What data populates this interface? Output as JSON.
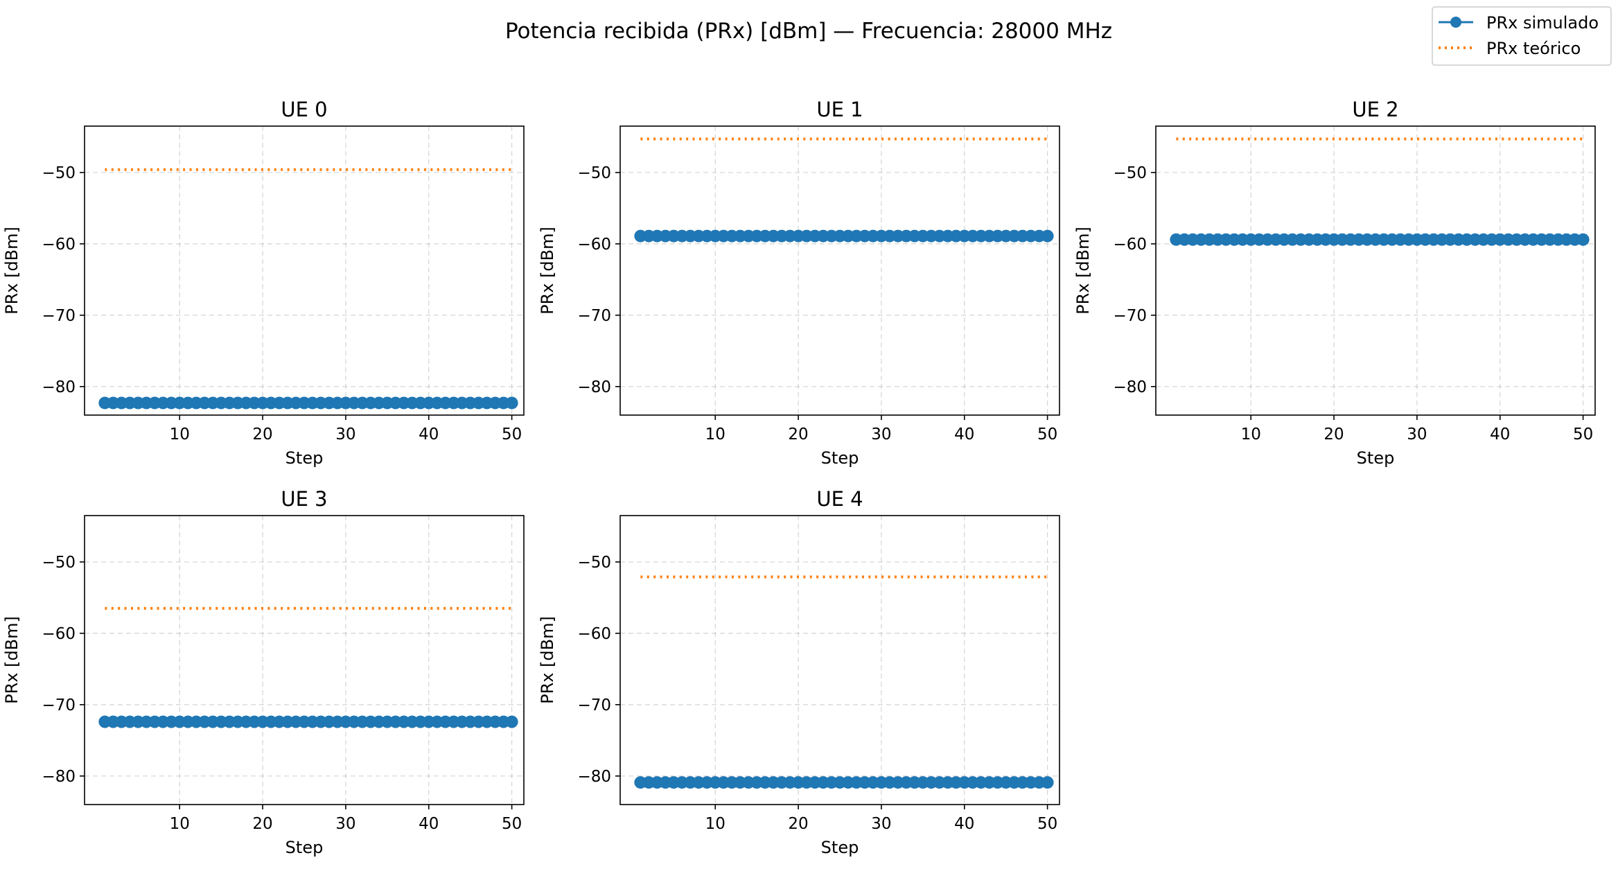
{
  "figure": {
    "title": "Potencia recibida (PRx) [dBm] — Frecuencia: 28000 MHz",
    "legend": {
      "placement": "top-right",
      "items": [
        {
          "label": "PRx simulado",
          "style": "line-marker",
          "color": "#1f77b4"
        },
        {
          "label": "PRx teórico",
          "style": "dotted",
          "color": "#ff7f0e"
        }
      ]
    }
  },
  "chart_data": [
    {
      "type": "line",
      "title": "UE 0",
      "xlabel": "Step",
      "ylabel": "PRx [dBm]",
      "xlim": [
        -1.45,
        51.45
      ],
      "ylim": [
        -84,
        -43.5
      ],
      "xticks": [
        10,
        20,
        30,
        40,
        50
      ],
      "yticks": [
        -80,
        -70,
        -60,
        -50
      ],
      "grid": true,
      "x_range": [
        1,
        50
      ],
      "series": [
        {
          "name": "PRx simulado",
          "color": "#1f77b4",
          "style": "line-marker",
          "value": -82.3
        },
        {
          "name": "PRx teórico",
          "color": "#ff7f0e",
          "style": "dotted",
          "value": -49.6
        }
      ]
    },
    {
      "type": "line",
      "title": "UE 1",
      "xlabel": "Step",
      "ylabel": "PRx [dBm]",
      "xlim": [
        -1.45,
        51.45
      ],
      "ylim": [
        -84,
        -43.5
      ],
      "xticks": [
        10,
        20,
        30,
        40,
        50
      ],
      "yticks": [
        -80,
        -70,
        -60,
        -50
      ],
      "grid": true,
      "x_range": [
        1,
        50
      ],
      "series": [
        {
          "name": "PRx simulado",
          "color": "#1f77b4",
          "style": "line-marker",
          "value": -58.9
        },
        {
          "name": "PRx teórico",
          "color": "#ff7f0e",
          "style": "dotted",
          "value": -45.3
        }
      ]
    },
    {
      "type": "line",
      "title": "UE 2",
      "xlabel": "Step",
      "ylabel": "PRx [dBm]",
      "xlim": [
        -1.45,
        51.45
      ],
      "ylim": [
        -84,
        -43.5
      ],
      "xticks": [
        10,
        20,
        30,
        40,
        50
      ],
      "yticks": [
        -80,
        -70,
        -60,
        -50
      ],
      "grid": true,
      "x_range": [
        1,
        50
      ],
      "series": [
        {
          "name": "PRx simulado",
          "color": "#1f77b4",
          "style": "line-marker",
          "value": -59.4
        },
        {
          "name": "PRx teórico",
          "color": "#ff7f0e",
          "style": "dotted",
          "value": -45.3
        }
      ]
    },
    {
      "type": "line",
      "title": "UE 3",
      "xlabel": "Step",
      "ylabel": "PRx [dBm]",
      "xlim": [
        -1.45,
        51.45
      ],
      "ylim": [
        -84,
        -43.5
      ],
      "xticks": [
        10,
        20,
        30,
        40,
        50
      ],
      "yticks": [
        -80,
        -70,
        -60,
        -50
      ],
      "grid": true,
      "x_range": [
        1,
        50
      ],
      "series": [
        {
          "name": "PRx simulado",
          "color": "#1f77b4",
          "style": "line-marker",
          "value": -72.4
        },
        {
          "name": "PRx teórico",
          "color": "#ff7f0e",
          "style": "dotted",
          "value": -56.5
        }
      ]
    },
    {
      "type": "line",
      "title": "UE 4",
      "xlabel": "Step",
      "ylabel": "PRx [dBm]",
      "xlim": [
        -1.45,
        51.45
      ],
      "ylim": [
        -84,
        -43.5
      ],
      "xticks": [
        10,
        20,
        30,
        40,
        50
      ],
      "yticks": [
        -80,
        -70,
        -60,
        -50
      ],
      "grid": true,
      "x_range": [
        1,
        50
      ],
      "series": [
        {
          "name": "PRx simulado",
          "color": "#1f77b4",
          "style": "line-marker",
          "value": -80.9
        },
        {
          "name": "PRx teórico",
          "color": "#ff7f0e",
          "style": "dotted",
          "value": -52.1
        }
      ]
    }
  ]
}
